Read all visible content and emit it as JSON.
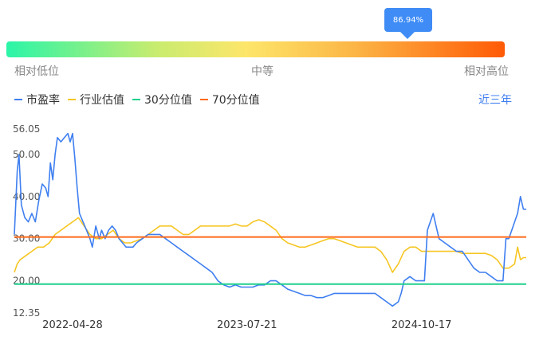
{
  "gauge": {
    "percentile": "86.94%",
    "percentile_value": 0.8694,
    "labels": {
      "low": "相对低位",
      "mid": "中等",
      "high": "相对高位"
    },
    "gradient": [
      "#2af5a8",
      "#fde66a",
      "#ff5a05"
    ]
  },
  "legend": [
    {
      "name": "市盈率",
      "color": "#3f7ff0"
    },
    {
      "name": "行业估值",
      "color": "#f6c623"
    },
    {
      "name": "30分位值",
      "color": "#20d08c"
    },
    {
      "name": "70分位值",
      "color": "#ff6a1a"
    }
  ],
  "range_button": "近三年",
  "chart_data": {
    "type": "line",
    "ylim": [
      12.35,
      56.05
    ],
    "y_ticks": [
      "56.05",
      "50.00",
      "40.00",
      "30.00",
      "20.00",
      "12.35"
    ],
    "x_tick_labels": [
      "2022-04-28",
      "2023-07-21",
      "2024-10-17"
    ],
    "x_tick_positions": [
      100,
      400,
      700
    ],
    "x_range": [
      0,
      880
    ],
    "series": [
      {
        "name": "市盈率",
        "color": "#3f7ff0",
        "points": [
          [
            0,
            31
          ],
          [
            5,
            46
          ],
          [
            8,
            50
          ],
          [
            12,
            38
          ],
          [
            18,
            35
          ],
          [
            24,
            34
          ],
          [
            30,
            36
          ],
          [
            36,
            34
          ],
          [
            42,
            39
          ],
          [
            48,
            43
          ],
          [
            54,
            42
          ],
          [
            58,
            40
          ],
          [
            62,
            48
          ],
          [
            66,
            44
          ],
          [
            70,
            50
          ],
          [
            74,
            54
          ],
          [
            80,
            53
          ],
          [
            86,
            54
          ],
          [
            92,
            55
          ],
          [
            96,
            53
          ],
          [
            100,
            55
          ],
          [
            104,
            49
          ],
          [
            108,
            42
          ],
          [
            112,
            36
          ],
          [
            118,
            34
          ],
          [
            124,
            32
          ],
          [
            130,
            30
          ],
          [
            134,
            28
          ],
          [
            140,
            33
          ],
          [
            146,
            30
          ],
          [
            150,
            32
          ],
          [
            156,
            30
          ],
          [
            162,
            32
          ],
          [
            168,
            33
          ],
          [
            174,
            32
          ],
          [
            180,
            30
          ],
          [
            186,
            29
          ],
          [
            192,
            28
          ],
          [
            198,
            28
          ],
          [
            204,
            28
          ],
          [
            210,
            29
          ],
          [
            220,
            30
          ],
          [
            230,
            31
          ],
          [
            240,
            31
          ],
          [
            250,
            31
          ],
          [
            260,
            30
          ],
          [
            270,
            29
          ],
          [
            280,
            28
          ],
          [
            290,
            27
          ],
          [
            300,
            26
          ],
          [
            310,
            25
          ],
          [
            320,
            24
          ],
          [
            330,
            23
          ],
          [
            340,
            22
          ],
          [
            350,
            20
          ],
          [
            360,
            19
          ],
          [
            370,
            18.5
          ],
          [
            380,
            19
          ],
          [
            390,
            18.5
          ],
          [
            400,
            18.5
          ],
          [
            410,
            18.5
          ],
          [
            420,
            19
          ],
          [
            430,
            19
          ],
          [
            440,
            20
          ],
          [
            450,
            20
          ],
          [
            460,
            19
          ],
          [
            470,
            18
          ],
          [
            480,
            17.5
          ],
          [
            490,
            17
          ],
          [
            500,
            16.5
          ],
          [
            510,
            16.5
          ],
          [
            520,
            16
          ],
          [
            530,
            16
          ],
          [
            540,
            16.5
          ],
          [
            550,
            17
          ],
          [
            560,
            17
          ],
          [
            570,
            17
          ],
          [
            580,
            17
          ],
          [
            590,
            17
          ],
          [
            600,
            17
          ],
          [
            610,
            17
          ],
          [
            620,
            17
          ],
          [
            630,
            16
          ],
          [
            640,
            15
          ],
          [
            650,
            14
          ],
          [
            660,
            15
          ],
          [
            665,
            17
          ],
          [
            670,
            20
          ],
          [
            680,
            21
          ],
          [
            690,
            20
          ],
          [
            700,
            20
          ],
          [
            705,
            20
          ],
          [
            710,
            32
          ],
          [
            715,
            34
          ],
          [
            720,
            36
          ],
          [
            725,
            33
          ],
          [
            730,
            30
          ],
          [
            740,
            29
          ],
          [
            750,
            28
          ],
          [
            760,
            27
          ],
          [
            770,
            27
          ],
          [
            780,
            25
          ],
          [
            790,
            23
          ],
          [
            800,
            22
          ],
          [
            810,
            22
          ],
          [
            820,
            21
          ],
          [
            830,
            20
          ],
          [
            840,
            20
          ],
          [
            845,
            30
          ],
          [
            850,
            30
          ],
          [
            855,
            32
          ],
          [
            860,
            34
          ],
          [
            865,
            36
          ],
          [
            870,
            40
          ],
          [
            875,
            37
          ],
          [
            880,
            37
          ]
        ]
      },
      {
        "name": "行业估值",
        "color": "#f6c623",
        "points": [
          [
            0,
            22
          ],
          [
            5,
            24
          ],
          [
            10,
            25
          ],
          [
            20,
            26
          ],
          [
            30,
            27
          ],
          [
            40,
            28
          ],
          [
            50,
            28
          ],
          [
            60,
            29
          ],
          [
            70,
            31
          ],
          [
            80,
            32
          ],
          [
            90,
            33
          ],
          [
            100,
            34
          ],
          [
            110,
            35
          ],
          [
            120,
            33
          ],
          [
            130,
            31
          ],
          [
            140,
            30
          ],
          [
            150,
            30
          ],
          [
            160,
            31
          ],
          [
            170,
            32
          ],
          [
            180,
            30
          ],
          [
            190,
            29
          ],
          [
            200,
            29
          ],
          [
            210,
            29.5
          ],
          [
            220,
            30
          ],
          [
            230,
            31
          ],
          [
            240,
            32
          ],
          [
            250,
            33
          ],
          [
            260,
            33
          ],
          [
            270,
            33
          ],
          [
            280,
            32
          ],
          [
            290,
            31
          ],
          [
            300,
            31
          ],
          [
            310,
            32
          ],
          [
            320,
            33
          ],
          [
            330,
            33
          ],
          [
            340,
            33
          ],
          [
            350,
            33
          ],
          [
            360,
            33
          ],
          [
            370,
            33
          ],
          [
            380,
            33.5
          ],
          [
            390,
            33
          ],
          [
            400,
            33
          ],
          [
            410,
            34
          ],
          [
            420,
            34.5
          ],
          [
            430,
            34
          ],
          [
            440,
            33
          ],
          [
            450,
            32
          ],
          [
            460,
            30
          ],
          [
            470,
            29
          ],
          [
            480,
            28.5
          ],
          [
            490,
            28
          ],
          [
            500,
            28
          ],
          [
            510,
            28.5
          ],
          [
            520,
            29
          ],
          [
            530,
            29.5
          ],
          [
            540,
            30
          ],
          [
            550,
            30
          ],
          [
            560,
            29.5
          ],
          [
            570,
            29
          ],
          [
            580,
            28.5
          ],
          [
            590,
            28
          ],
          [
            600,
            28
          ],
          [
            610,
            28
          ],
          [
            620,
            28
          ],
          [
            630,
            27
          ],
          [
            640,
            25
          ],
          [
            650,
            22
          ],
          [
            660,
            24
          ],
          [
            670,
            27
          ],
          [
            680,
            28
          ],
          [
            690,
            28
          ],
          [
            700,
            27
          ],
          [
            710,
            27
          ],
          [
            720,
            27
          ],
          [
            730,
            27
          ],
          [
            740,
            27
          ],
          [
            750,
            27
          ],
          [
            760,
            27
          ],
          [
            770,
            26.5
          ],
          [
            780,
            26.5
          ],
          [
            790,
            26.5
          ],
          [
            800,
            26.5
          ],
          [
            810,
            26.5
          ],
          [
            820,
            26
          ],
          [
            830,
            25
          ],
          [
            840,
            23
          ],
          [
            850,
            23
          ],
          [
            855,
            23.5
          ],
          [
            860,
            24
          ],
          [
            865,
            28
          ],
          [
            870,
            25
          ],
          [
            875,
            25.5
          ],
          [
            880,
            25.5
          ]
        ]
      },
      {
        "name": "30分位值",
        "color": "#20d08c",
        "points": [
          [
            0,
            19.2
          ],
          [
            880,
            19.2
          ]
        ]
      },
      {
        "name": "70分位值",
        "color": "#ff6a1a",
        "points": [
          [
            0,
            30.4
          ],
          [
            880,
            30.4
          ]
        ]
      }
    ]
  }
}
